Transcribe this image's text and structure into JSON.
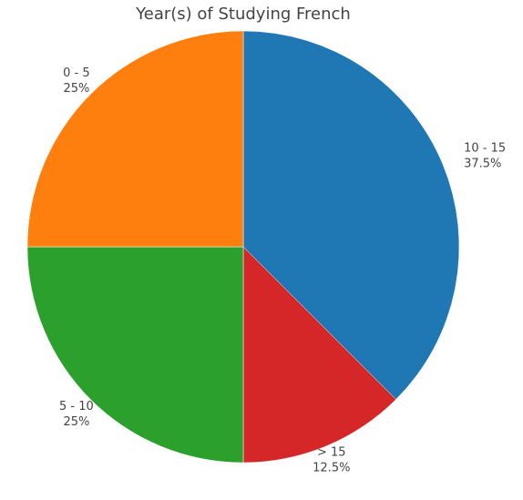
{
  "chart_data": {
    "type": "pie",
    "title": "Year(s) of Studying French",
    "slices": [
      {
        "label": "10 - 15",
        "value": 37.5,
        "percent_label": "37.5%",
        "color": "#1f77b4"
      },
      {
        "label": "> 15",
        "value": 12.5,
        "percent_label": "12.5%",
        "color": "#d62728"
      },
      {
        "label": "5 - 10",
        "value": 25,
        "percent_label": "25%",
        "color": "#2ca02c"
      },
      {
        "label": "0 - 5",
        "value": 25,
        "percent_label": "25%",
        "color": "#ff7f0e"
      }
    ],
    "start": "12 o'clock",
    "direction": "clockwise",
    "legend": "none"
  }
}
